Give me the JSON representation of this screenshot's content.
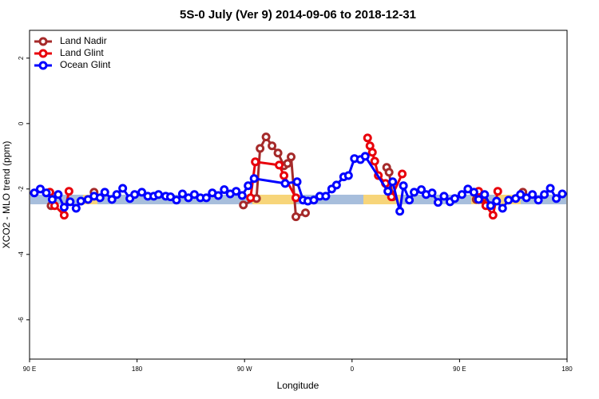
{
  "chart_data": {
    "type": "line",
    "title": "5S-0 July (Ver 9)   2014-09-06 to 2018-12-31",
    "x_label": "Longitude",
    "y_label": "XCO2 - MLO trend (ppm)",
    "xlim": [
      90,
      540
    ],
    "xticks": [
      {
        "value": 90,
        "label": "90 E"
      },
      {
        "value": 180,
        "label": "180"
      },
      {
        "value": 270,
        "label": "90 W"
      },
      {
        "value": 360,
        "label": "0"
      },
      {
        "value": 450,
        "label": "90 E"
      },
      {
        "value": 540,
        "label": "180"
      }
    ],
    "ylim": [
      -7.2,
      2.85
    ],
    "yticks": [
      -6,
      -4,
      -2,
      0,
      2
    ],
    "legend": "top-left",
    "series": [
      {
        "name": "Land Nadir",
        "color": "#a52a2a",
        "x": [
          108,
          126,
          144,
          200,
          269,
          280,
          283,
          288,
          293,
          298,
          303,
          306,
          309,
          313,
          321,
          350,
          389,
          391,
          394,
          430,
          464,
          469,
          485,
          503
        ],
        "values": [
          -2.51,
          null,
          -2.1,
          null,
          -2.49,
          -2.29,
          -0.76,
          -0.41,
          -0.68,
          -0.9,
          -1.29,
          -1.22,
          -1.02,
          -2.85,
          -2.73,
          null,
          -1.34,
          -1.49,
          -2.24,
          null,
          -2.32,
          -2.32,
          null,
          -2.1
        ]
      },
      {
        "name": "Land Glint",
        "color": "#e8000b",
        "x": [
          107,
          111,
          119,
          123,
          200,
          275,
          279,
          299,
          303,
          313,
          350,
          373,
          375,
          377,
          379,
          382,
          388,
          393,
          402,
          430,
          466,
          472,
          478,
          482
        ],
        "values": [
          -2.1,
          -2.51,
          -2.8,
          -2.07,
          null,
          -2.27,
          -1.17,
          -1.27,
          -1.59,
          -2.27,
          null,
          -0.44,
          -0.68,
          -0.88,
          -1.15,
          -1.59,
          -1.83,
          -2.24,
          -1.54,
          null,
          -2.07,
          -2.51,
          -2.8,
          -2.07
        ]
      },
      {
        "name": "Ocean Glint",
        "color": "#0000ff",
        "x": [
          94,
          99,
          104,
          109,
          114,
          119,
          124,
          129,
          133,
          139,
          144,
          149,
          153,
          159,
          163,
          168,
          174,
          178,
          184,
          189,
          194,
          198,
          204,
          208,
          213,
          218,
          223,
          228,
          233,
          238,
          243,
          248,
          253,
          258,
          263,
          268,
          273,
          278,
          304,
          314,
          319,
          323,
          328,
          333,
          338,
          343,
          347,
          353,
          357,
          362,
          367,
          371,
          390,
          394,
          400,
          403,
          408,
          412,
          418,
          422,
          427,
          432,
          437,
          442,
          446,
          452,
          457,
          462,
          466,
          471,
          476,
          481,
          486,
          491,
          497,
          501,
          506,
          511,
          516,
          521,
          526,
          531,
          536
        ],
        "values": [
          -2.12,
          -2.0,
          -2.12,
          -2.32,
          -2.17,
          -2.56,
          -2.39,
          -2.59,
          -2.37,
          -2.32,
          -2.22,
          -2.27,
          -2.1,
          -2.32,
          -2.17,
          -1.98,
          -2.29,
          -2.17,
          -2.1,
          -2.22,
          -2.22,
          -2.17,
          -2.22,
          -2.24,
          -2.34,
          -2.15,
          -2.27,
          -2.17,
          -2.27,
          -2.27,
          -2.12,
          -2.2,
          -2.02,
          -2.15,
          -2.07,
          -2.2,
          -1.9,
          -1.68,
          -1.83,
          -1.78,
          -2.34,
          -2.37,
          -2.34,
          -2.22,
          -2.22,
          -2.0,
          -1.88,
          -1.63,
          -1.59,
          -1.07,
          -1.1,
          -1.0,
          -2.07,
          -1.78,
          -2.68,
          -1.9,
          -2.34,
          -2.1,
          -2.02,
          -2.17,
          -2.12,
          -2.41,
          -2.22,
          -2.39,
          -2.29,
          -2.17,
          -2.0,
          -2.1,
          -2.32,
          -2.17,
          -2.51,
          -2.37,
          -2.59,
          -2.34,
          -2.29,
          -2.17,
          -2.27,
          -2.17,
          -2.34,
          -2.17,
          -1.98,
          -2.29,
          -2.15
        ]
      }
    ]
  }
}
